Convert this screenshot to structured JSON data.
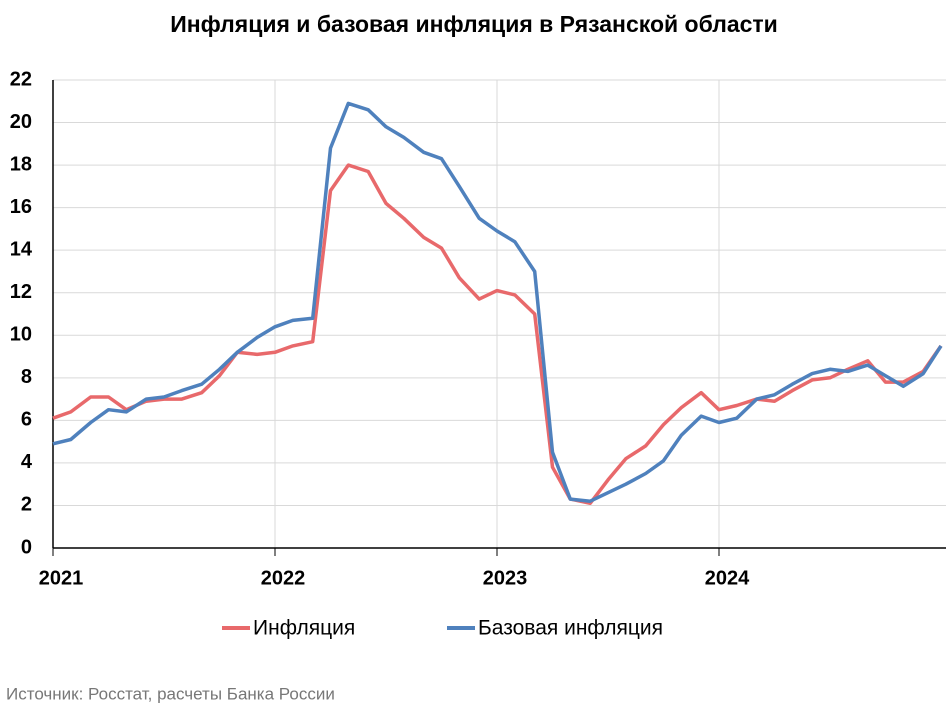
{
  "chart_data": {
    "type": "line",
    "title": "Инфляция и базовая инфляция в Рязанской области",
    "source": "Источник: Росстат, расчеты Банка России",
    "x": [
      2021,
      2021.08,
      2021.17,
      2021.25,
      2021.33,
      2021.42,
      2021.5,
      2021.58,
      2021.67,
      2021.75,
      2021.83,
      2021.92,
      2022,
      2022.08,
      2022.17,
      2022.25,
      2022.33,
      2022.42,
      2022.5,
      2022.58,
      2022.67,
      2022.75,
      2022.83,
      2022.92,
      2023,
      2023.08,
      2023.17,
      2023.25,
      2023.33,
      2023.42,
      2023.5,
      2023.58,
      2023.67,
      2023.75,
      2023.83,
      2023.92,
      2024,
      2024.08,
      2024.17,
      2024.25,
      2024.33,
      2024.42,
      2024.5,
      2024.58,
      2024.67,
      2024.75,
      2024.83,
      2024.92,
      2025
    ],
    "series": [
      {
        "name": "Инфляция",
        "color": "#e8696b",
        "values": [
          6.1,
          6.4,
          7.1,
          7.1,
          6.5,
          6.9,
          7.0,
          7.0,
          7.3,
          8.1,
          9.2,
          9.1,
          9.2,
          9.5,
          9.7,
          16.8,
          18.0,
          17.7,
          16.2,
          15.5,
          14.6,
          14.1,
          12.7,
          11.7,
          12.1,
          11.9,
          11.0,
          3.8,
          2.3,
          2.1,
          3.2,
          4.2,
          4.8,
          5.8,
          6.6,
          7.3,
          6.5,
          6.7,
          7.0,
          6.9,
          7.4,
          7.9,
          8.0,
          8.4,
          8.8,
          7.8,
          7.8,
          8.3,
          9.5
        ]
      },
      {
        "name": "Базовая инфляция",
        "color": "#4f81bd",
        "values": [
          4.9,
          5.1,
          5.9,
          6.5,
          6.4,
          7.0,
          7.1,
          7.4,
          7.7,
          8.4,
          9.2,
          9.9,
          10.4,
          10.7,
          10.8,
          18.8,
          20.9,
          20.6,
          19.8,
          19.3,
          18.6,
          18.3,
          17.0,
          15.5,
          14.9,
          14.4,
          13.0,
          4.5,
          2.3,
          2.2,
          2.6,
          3.0,
          3.5,
          4.1,
          5.3,
          6.2,
          5.9,
          6.1,
          7.0,
          7.2,
          7.7,
          8.2,
          8.4,
          8.3,
          8.6,
          8.1,
          7.6,
          8.2,
          9.5
        ]
      }
    ],
    "xlim": [
      2021,
      2025
    ],
    "xticks": [
      2021,
      2022,
      2023,
      2024
    ],
    "ylim": [
      0,
      22
    ],
    "yticks": [
      0,
      2,
      4,
      6,
      8,
      10,
      12,
      14,
      16,
      18,
      20,
      22
    ],
    "grid": true,
    "legend": "bottom"
  }
}
